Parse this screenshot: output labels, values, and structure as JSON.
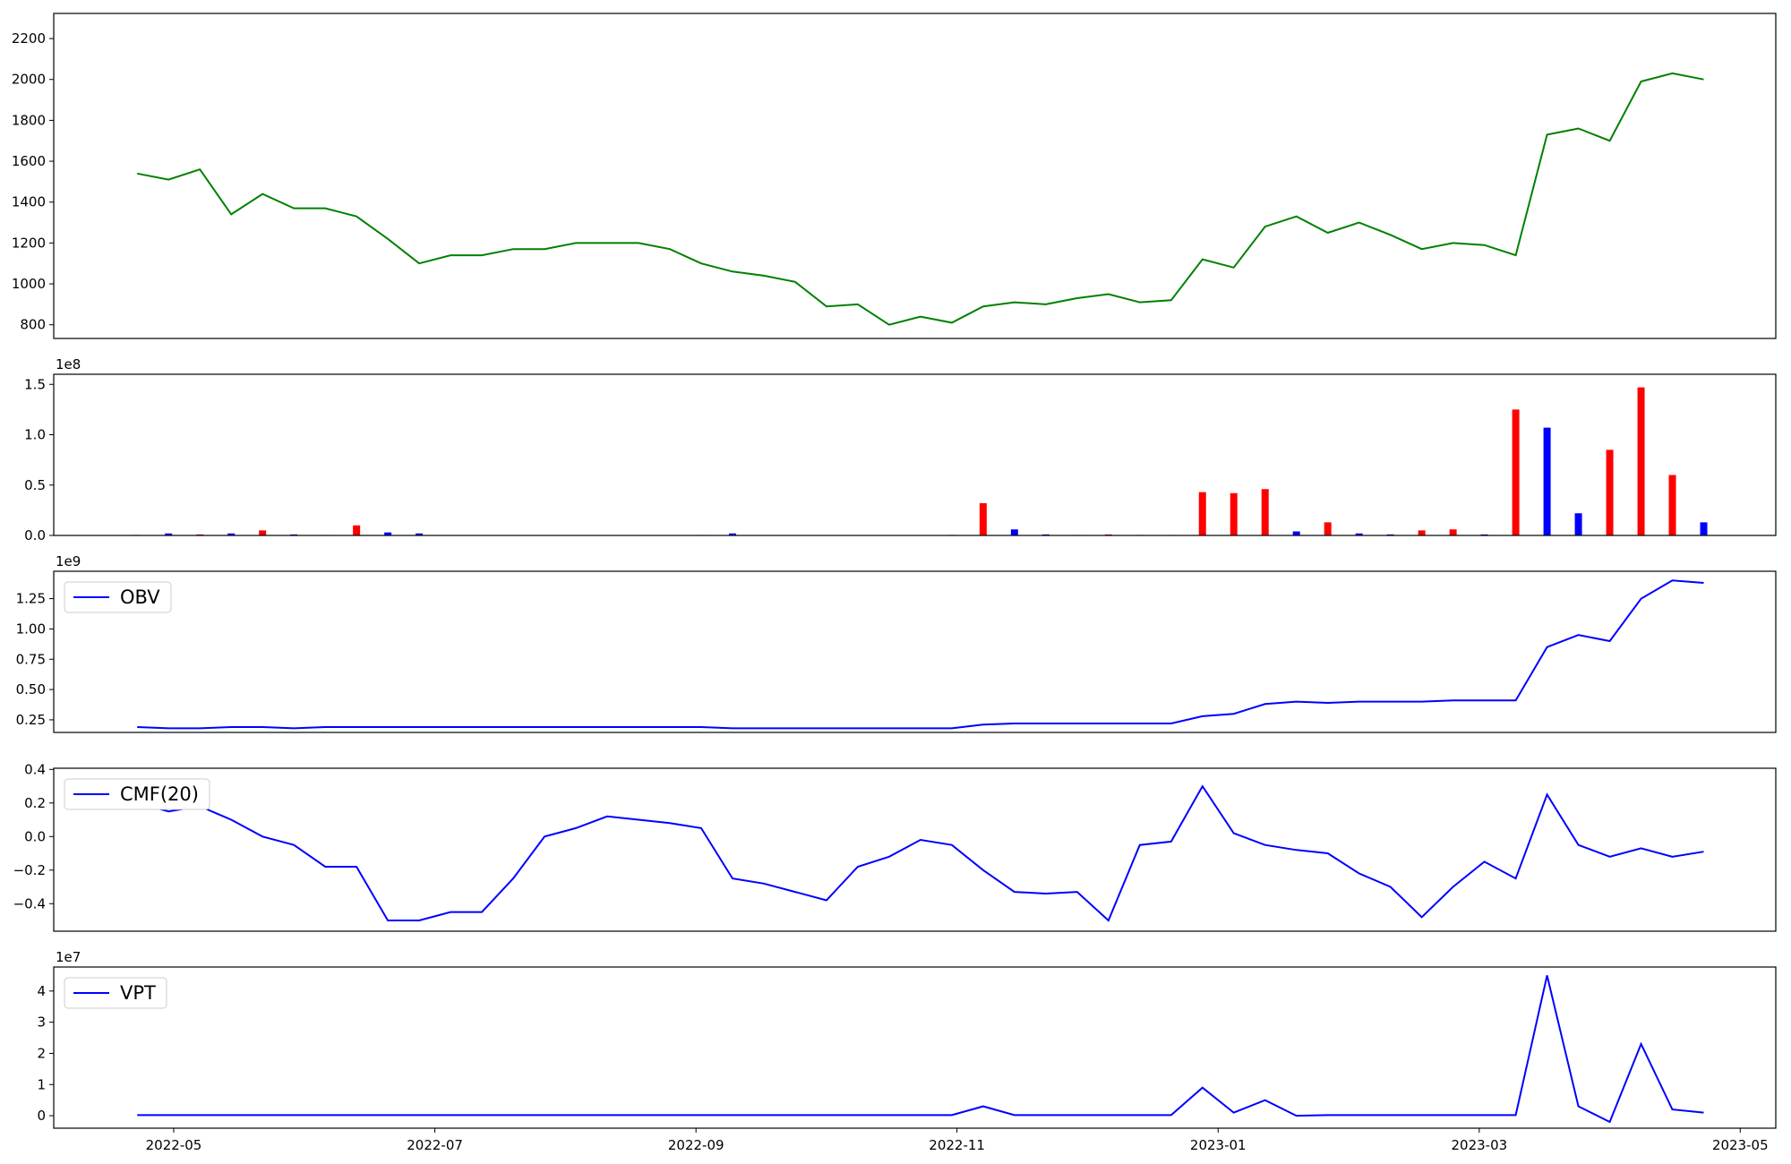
{
  "chart_data": [
    {
      "type": "line",
      "x": [
        2022.31,
        2022.33,
        2022.35,
        2022.37,
        2022.39,
        2022.41,
        2022.43,
        2022.45,
        2022.47,
        2022.49,
        2022.51,
        2022.53,
        2022.55,
        2022.57,
        2022.59,
        2022.61,
        2022.63,
        2022.65,
        2022.67,
        2022.69,
        2022.71,
        2022.73,
        2022.75,
        2022.77,
        2022.79,
        2022.81,
        2022.83,
        2022.85,
        2022.87,
        2022.89,
        2022.91,
        2022.93,
        2022.95,
        2022.97,
        2022.99,
        2023.01,
        2023.03,
        2023.05,
        2023.07,
        2023.09,
        2023.11,
        2023.13,
        2023.15,
        2023.17,
        2023.19,
        2023.21,
        2023.23,
        2023.25,
        2023.27,
        2023.29,
        2023.31
      ],
      "series": [
        {
          "color": "#008000",
          "values": [
            1540,
            1510,
            1560,
            1340,
            1440,
            1370,
            1370,
            1330,
            1220,
            1100,
            1140,
            1140,
            1170,
            1170,
            1200,
            1200,
            1200,
            1170,
            1100,
            1060,
            1040,
            1010,
            890,
            900,
            800,
            840,
            810,
            890,
            910,
            900,
            930,
            950,
            910,
            920,
            1120,
            1080,
            1280,
            1330,
            1250,
            1300,
            1240,
            1170,
            1200,
            1190,
            1140,
            1730,
            1760,
            1700,
            1990,
            2030,
            2000
          ]
        }
      ],
      "xlim": [
        2022.2567,
        2023.356
      ],
      "ylim": [
        733,
        2323
      ],
      "yticks": [
        800,
        1000,
        1200,
        1400,
        1600,
        1800,
        2000,
        2200
      ]
    },
    {
      "type": "bar",
      "offset_text": "1e8",
      "x": [
        2022.31,
        2022.33,
        2022.35,
        2022.37,
        2022.39,
        2022.41,
        2022.43,
        2022.45,
        2022.47,
        2022.49,
        2022.51,
        2022.53,
        2022.55,
        2022.57,
        2022.59,
        2022.61,
        2022.63,
        2022.65,
        2022.67,
        2022.69,
        2022.71,
        2022.73,
        2022.75,
        2022.77,
        2022.79,
        2022.81,
        2022.83,
        2022.85,
        2022.87,
        2022.89,
        2022.91,
        2022.93,
        2022.95,
        2022.97,
        2022.99,
        2023.01,
        2023.03,
        2023.05,
        2023.07,
        2023.09,
        2023.11,
        2023.13,
        2023.15,
        2023.17,
        2023.19,
        2023.21,
        2023.23,
        2023.25,
        2023.27,
        2023.29,
        2023.31
      ],
      "values": [
        0.005,
        0.02,
        0.01,
        0.02,
        0.05,
        0.01,
        0.005,
        0.1,
        0.03,
        0.02,
        0.003,
        0.003,
        0.003,
        0.003,
        0.003,
        0.003,
        0.003,
        0.003,
        0.005,
        0.02,
        0.003,
        0.003,
        0.003,
        0.003,
        0.003,
        0.003,
        0.005,
        0.32,
        0.06,
        0.01,
        0.005,
        0.01,
        0.005,
        0.005,
        0.43,
        0.42,
        0.46,
        0.04,
        0.13,
        0.02,
        0.01,
        0.05,
        0.06,
        0.01,
        1.25,
        1.07,
        0.22,
        0.85,
        1.47,
        0.6,
        0.13
      ],
      "colors": [
        "#0000ff",
        "#0000ff",
        "#ff0000",
        "#0000ff",
        "#ff0000",
        "#0000ff",
        "#0000ff",
        "#ff0000",
        "#0000ff",
        "#0000ff",
        "#0000ff",
        "#0000ff",
        "#0000ff",
        "#0000ff",
        "#0000ff",
        "#0000ff",
        "#0000ff",
        "#0000ff",
        "#0000ff",
        "#0000ff",
        "#0000ff",
        "#0000ff",
        "#0000ff",
        "#0000ff",
        "#0000ff",
        "#0000ff",
        "#0000ff",
        "#ff0000",
        "#0000ff",
        "#0000ff",
        "#0000ff",
        "#ff0000",
        "#0000ff",
        "#0000ff",
        "#ff0000",
        "#ff0000",
        "#ff0000",
        "#0000ff",
        "#ff0000",
        "#0000ff",
        "#0000ff",
        "#ff0000",
        "#ff0000",
        "#0000ff",
        "#ff0000",
        "#0000ff",
        "#0000ff",
        "#ff0000",
        "#ff0000",
        "#ff0000",
        "#0000ff"
      ],
      "xlim": [
        2022.2567,
        2023.356
      ],
      "ylim": [
        0,
        1.6
      ],
      "yticks": [
        {
          "value": 0,
          "label": "0.0"
        },
        0.5,
        {
          "value": 1,
          "label": "1.0"
        },
        1.5
      ]
    },
    {
      "type": "line",
      "offset_text": "1e9",
      "legend": "upper left",
      "x": [
        2022.31,
        2022.33,
        2022.35,
        2022.37,
        2022.39,
        2022.41,
        2022.43,
        2022.45,
        2022.47,
        2022.49,
        2022.51,
        2022.53,
        2022.55,
        2022.57,
        2022.59,
        2022.61,
        2022.63,
        2022.65,
        2022.67,
        2022.69,
        2022.71,
        2022.73,
        2022.75,
        2022.77,
        2022.79,
        2022.81,
        2022.83,
        2022.85,
        2022.87,
        2022.89,
        2022.91,
        2022.93,
        2022.95,
        2022.97,
        2022.99,
        2023.01,
        2023.03,
        2023.05,
        2023.07,
        2023.09,
        2023.11,
        2023.13,
        2023.15,
        2023.17,
        2023.19,
        2023.21,
        2023.23,
        2023.25,
        2023.27,
        2023.29,
        2023.31
      ],
      "series": [
        {
          "name": "OBV",
          "color": "#0000ff",
          "values": [
            0.19,
            0.18,
            0.18,
            0.19,
            0.19,
            0.18,
            0.19,
            0.19,
            0.19,
            0.19,
            0.19,
            0.19,
            0.19,
            0.19,
            0.19,
            0.19,
            0.19,
            0.19,
            0.19,
            0.18,
            0.18,
            0.18,
            0.18,
            0.18,
            0.18,
            0.18,
            0.18,
            0.21,
            0.22,
            0.22,
            0.22,
            0.22,
            0.22,
            0.22,
            0.28,
            0.3,
            0.38,
            0.4,
            0.39,
            0.4,
            0.4,
            0.4,
            0.41,
            0.41,
            0.41,
            0.85,
            0.95,
            0.9,
            1.25,
            1.4,
            1.38
          ]
        }
      ],
      "xlim": [
        2022.2567,
        2023.356
      ],
      "ylim": [
        0.146,
        1.476
      ],
      "yticks": [
        0.25,
        {
          "value": 0.5,
          "label": "0.50"
        },
        0.75,
        {
          "value": 1,
          "label": "1.00"
        },
        1.25
      ]
    },
    {
      "type": "line",
      "legend": "upper left",
      "x": [
        2022.31,
        2022.33,
        2022.35,
        2022.37,
        2022.39,
        2022.41,
        2022.43,
        2022.45,
        2022.47,
        2022.49,
        2022.51,
        2022.53,
        2022.55,
        2022.57,
        2022.59,
        2022.61,
        2022.63,
        2022.65,
        2022.67,
        2022.69,
        2022.71,
        2022.73,
        2022.75,
        2022.77,
        2022.79,
        2022.81,
        2022.83,
        2022.85,
        2022.87,
        2022.89,
        2022.91,
        2022.93,
        2022.95,
        2022.97,
        2022.99,
        2023.01,
        2023.03,
        2023.05,
        2023.07,
        2023.09,
        2023.11,
        2023.13,
        2023.15,
        2023.17,
        2023.19,
        2023.21,
        2023.23,
        2023.25,
        2023.27,
        2023.29,
        2023.31
      ],
      "series": [
        {
          "name": "CMF(20)",
          "color": "#0000ff",
          "values": [
            0.2,
            0.15,
            0.18,
            0.1,
            0.0,
            -0.05,
            -0.18,
            -0.18,
            -0.5,
            -0.5,
            -0.45,
            -0.45,
            -0.25,
            0.0,
            0.05,
            0.12,
            0.1,
            0.08,
            0.05,
            -0.25,
            -0.28,
            -0.33,
            -0.38,
            -0.18,
            -0.12,
            -0.02,
            -0.05,
            -0.2,
            -0.33,
            -0.34,
            -0.33,
            -0.5,
            -0.05,
            -0.03,
            0.3,
            0.02,
            -0.05,
            -0.08,
            -0.1,
            -0.22,
            -0.3,
            -0.48,
            -0.3,
            -0.15,
            -0.25,
            0.25,
            -0.05,
            -0.12,
            -0.07,
            -0.12,
            -0.09
          ]
        }
      ],
      "xlim": [
        2022.2567,
        2023.356
      ],
      "ylim": [
        -0.564,
        0.407
      ],
      "yticks": [
        {
          "value": -0.4,
          "label": "−0.4"
        },
        {
          "value": -0.2,
          "label": "−0.2"
        },
        {
          "value": 0,
          "label": "0.0"
        },
        0.2,
        0.4
      ]
    },
    {
      "type": "line",
      "offset_text": "1e7",
      "legend": "upper left",
      "x": [
        2022.31,
        2022.33,
        2022.35,
        2022.37,
        2022.39,
        2022.41,
        2022.43,
        2022.45,
        2022.47,
        2022.49,
        2022.51,
        2022.53,
        2022.55,
        2022.57,
        2022.59,
        2022.61,
        2022.63,
        2022.65,
        2022.67,
        2022.69,
        2022.71,
        2022.73,
        2022.75,
        2022.77,
        2022.79,
        2022.81,
        2022.83,
        2022.85,
        2022.87,
        2022.89,
        2022.91,
        2022.93,
        2022.95,
        2022.97,
        2022.99,
        2023.01,
        2023.03,
        2023.05,
        2023.07,
        2023.09,
        2023.11,
        2023.13,
        2023.15,
        2023.17,
        2023.19,
        2023.21,
        2023.23,
        2023.25,
        2023.27,
        2023.29,
        2023.31
      ],
      "series": [
        {
          "name": "VPT",
          "color": "#0000ff",
          "values": [
            0.02,
            0.02,
            0.02,
            0.02,
            0.02,
            0.02,
            0.02,
            0.02,
            0.02,
            0.02,
            0.02,
            0.02,
            0.02,
            0.02,
            0.02,
            0.02,
            0.02,
            0.02,
            0.02,
            0.02,
            0.02,
            0.02,
            0.02,
            0.02,
            0.02,
            0.02,
            0.02,
            0.3,
            0.02,
            0.02,
            0.02,
            0.02,
            0.02,
            0.02,
            0.9,
            0.1,
            0.5,
            0.0,
            0.02,
            0.02,
            0.02,
            0.02,
            0.02,
            0.02,
            0.02,
            4.5,
            0.3,
            -0.2,
            2.3,
            0.2,
            0.1
          ]
        }
      ],
      "xlim": [
        2022.2567,
        2023.356
      ],
      "ylim": [
        -0.4,
        4.77
      ],
      "yticks": [
        0,
        1,
        2,
        3,
        4
      ],
      "xticks": [
        {
          "value": 2022.3333,
          "label": "2022-05"
        },
        {
          "value": 2022.5,
          "label": "2022-07"
        },
        {
          "value": 2022.6667,
          "label": "2022-09"
        },
        {
          "value": 2022.8333,
          "label": "2022-11"
        },
        {
          "value": 2023.0,
          "label": "2023-01"
        },
        {
          "value": 2023.1667,
          "label": "2023-03"
        },
        {
          "value": 2023.3333,
          "label": "2023-05"
        }
      ]
    }
  ]
}
